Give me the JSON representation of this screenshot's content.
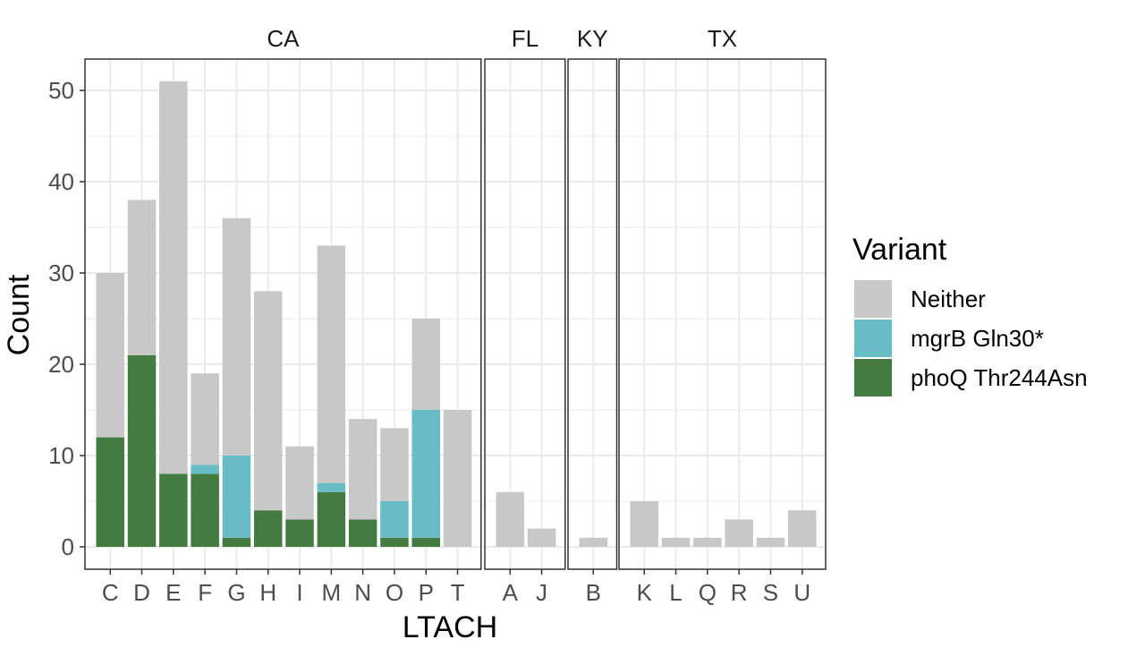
{
  "chart_data": {
    "type": "bar",
    "stacked": true,
    "xlabel": "LTACH",
    "ylabel": "Count",
    "ylim": [
      0,
      53
    ],
    "yticks": [
      0,
      10,
      20,
      30,
      40,
      50
    ],
    "grid": true,
    "legend": {
      "title": "Variant",
      "placement": "right",
      "entries": [
        {
          "name": "Neither",
          "color": "#c8c8c8"
        },
        {
          "name": "mgrB Gln30*",
          "color": "#68bcc6"
        },
        {
          "name": "phoQ Thr244Asn",
          "color": "#447b41"
        }
      ]
    },
    "colors": {
      "neither": "#c8c8c8",
      "mgrB": "#68bcc6",
      "phoQ": "#447b41",
      "panel_border": "#333333",
      "grid_major": "#ebebeb"
    },
    "facets": [
      {
        "label": "CA",
        "bars": [
          {
            "category": "C",
            "phoQ": 12,
            "mgrB": 0,
            "neither": 18
          },
          {
            "category": "D",
            "phoQ": 21,
            "mgrB": 0,
            "neither": 17
          },
          {
            "category": "E",
            "phoQ": 8,
            "mgrB": 0,
            "neither": 43
          },
          {
            "category": "F",
            "phoQ": 8,
            "mgrB": 1,
            "neither": 10
          },
          {
            "category": "G",
            "phoQ": 1,
            "mgrB": 9,
            "neither": 26
          },
          {
            "category": "H",
            "phoQ": 4,
            "mgrB": 0,
            "neither": 24
          },
          {
            "category": "I",
            "phoQ": 3,
            "mgrB": 0,
            "neither": 8
          },
          {
            "category": "M",
            "phoQ": 6,
            "mgrB": 1,
            "neither": 26
          },
          {
            "category": "N",
            "phoQ": 3,
            "mgrB": 0,
            "neither": 11
          },
          {
            "category": "O",
            "phoQ": 1,
            "mgrB": 4,
            "neither": 8
          },
          {
            "category": "P",
            "phoQ": 1,
            "mgrB": 14,
            "neither": 10
          },
          {
            "category": "T",
            "phoQ": 0,
            "mgrB": 0,
            "neither": 15
          }
        ]
      },
      {
        "label": "FL",
        "bars": [
          {
            "category": "A",
            "phoQ": 0,
            "mgrB": 0,
            "neither": 6
          },
          {
            "category": "J",
            "phoQ": 0,
            "mgrB": 0,
            "neither": 2
          }
        ]
      },
      {
        "label": "KY",
        "bars": [
          {
            "category": "B",
            "phoQ": 0,
            "mgrB": 0,
            "neither": 1
          }
        ]
      },
      {
        "label": "TX",
        "bars": [
          {
            "category": "K",
            "phoQ": 0,
            "mgrB": 0,
            "neither": 5
          },
          {
            "category": "L",
            "phoQ": 0,
            "mgrB": 0,
            "neither": 1
          },
          {
            "category": "Q",
            "phoQ": 0,
            "mgrB": 0,
            "neither": 1
          },
          {
            "category": "R",
            "phoQ": 0,
            "mgrB": 0,
            "neither": 3
          },
          {
            "category": "S",
            "phoQ": 0,
            "mgrB": 0,
            "neither": 1
          },
          {
            "category": "U",
            "phoQ": 0,
            "mgrB": 0,
            "neither": 4
          }
        ]
      }
    ]
  }
}
